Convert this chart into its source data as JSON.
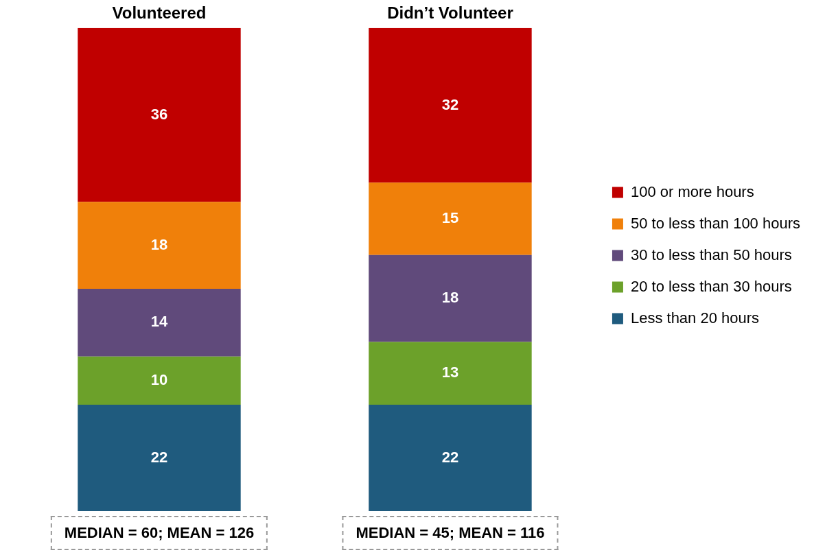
{
  "chart_data": {
    "type": "bar",
    "stacked": true,
    "categories": [
      "Volunteered",
      "Didn’t Volunteer"
    ],
    "series": [
      {
        "name": "Less than 20 hours",
        "color": "#1f5b7e",
        "values": [
          22,
          22
        ]
      },
      {
        "name": "20 to less than 30 hours",
        "color": "#6ca12a",
        "values": [
          10,
          13
        ]
      },
      {
        "name": "30 to less than 50 hours",
        "color": "#604a7b",
        "values": [
          14,
          18
        ]
      },
      {
        "name": "50 to less than 100 hours",
        "color": "#f0800a",
        "values": [
          18,
          15
        ]
      },
      {
        "name": "100 or more hours",
        "color": "#c00000",
        "values": [
          36,
          32
        ]
      }
    ],
    "data_labels": true,
    "legend": "right",
    "grid": false,
    "tick_labels": "x",
    "annotations": [
      "MEDIAN = 60; MEAN = 126",
      "MEDIAN = 45; MEAN = 116"
    ]
  }
}
